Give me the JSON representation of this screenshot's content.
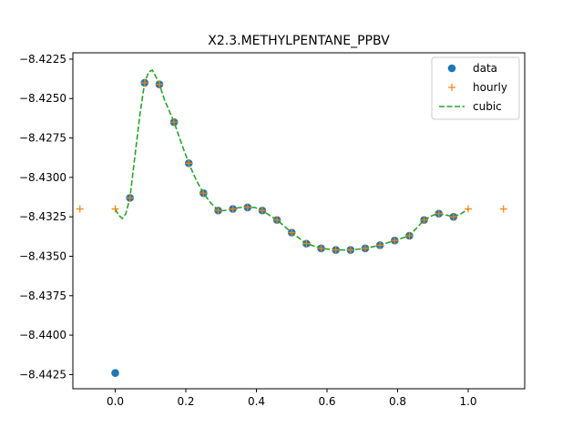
{
  "chart_data": {
    "type": "line",
    "title": "X2.3.METHYLPENTANE_PPBV",
    "xlabel": "",
    "ylabel": "",
    "xlim": [
      -0.12,
      1.16
    ],
    "ylim": [
      -8.4434,
      -8.4221
    ],
    "x_ticks": [
      0.0,
      0.2,
      0.4,
      0.6,
      0.8,
      1.0
    ],
    "x_tick_labels": [
      "0.0",
      "0.2",
      "0.4",
      "0.6",
      "0.8",
      "1.0"
    ],
    "y_ticks": [
      -8.4225,
      -8.425,
      -8.4275,
      -8.43,
      -8.4325,
      -8.435,
      -8.4375,
      -8.44,
      -8.4425
    ],
    "y_tick_labels": [
      "−8.4225",
      "−8.4250",
      "−8.4275",
      "−8.4300",
      "−8.4325",
      "−8.4350",
      "−8.4375",
      "−8.4400",
      "−8.4425"
    ],
    "legend": {
      "placement": "top-right",
      "entries": [
        "data",
        "hourly",
        "cubic"
      ]
    },
    "series": [
      {
        "name": "data",
        "style": "marker-circle",
        "color": "#1f77b4",
        "x": [
          0.0,
          0.0417,
          0.0833,
          0.125,
          0.1667,
          0.2083,
          0.25,
          0.2917,
          0.3333,
          0.375,
          0.4167,
          0.4583,
          0.5,
          0.5417,
          0.5833,
          0.625,
          0.6667,
          0.7083,
          0.75,
          0.7917,
          0.8333,
          0.875,
          0.9167,
          0.9583
        ],
        "y": [
          -8.4424,
          -8.4313,
          -8.424,
          -8.4241,
          -8.4265,
          -8.4291,
          -8.431,
          -8.4321,
          -8.432,
          -8.4319,
          -8.4321,
          -8.4327,
          -8.4335,
          -8.4342,
          -8.4345,
          -8.4346,
          -8.4346,
          -8.4345,
          -8.4343,
          -8.434,
          -8.4337,
          -8.4327,
          -8.4323,
          -8.4325
        ]
      },
      {
        "name": "hourly",
        "style": "marker-plus",
        "color": "#ff7f0e",
        "x": [
          -0.1,
          0.0,
          0.0417,
          0.0833,
          0.125,
          0.1667,
          0.2083,
          0.25,
          0.2917,
          0.3333,
          0.375,
          0.4167,
          0.4583,
          0.5,
          0.5417,
          0.5833,
          0.625,
          0.6667,
          0.7083,
          0.75,
          0.7917,
          0.8333,
          0.875,
          0.9167,
          0.9583,
          1.0,
          1.1
        ],
        "y": [
          -8.432,
          -8.432,
          -8.4313,
          -8.424,
          -8.4241,
          -8.4265,
          -8.4291,
          -8.431,
          -8.4321,
          -8.432,
          -8.4319,
          -8.4321,
          -8.4327,
          -8.4335,
          -8.4342,
          -8.4345,
          -8.4346,
          -8.4346,
          -8.4345,
          -8.4343,
          -8.434,
          -8.4337,
          -8.4327,
          -8.4323,
          -8.4325,
          -8.432,
          -8.432
        ]
      },
      {
        "name": "cubic",
        "style": "dashed-line",
        "color": "#2ca02c",
        "x": [
          0.0,
          0.01,
          0.02,
          0.03,
          0.0417,
          0.055,
          0.07,
          0.0833,
          0.095,
          0.105,
          0.115,
          0.125,
          0.14,
          0.1667,
          0.19,
          0.2083,
          0.23,
          0.25,
          0.27,
          0.2917,
          0.31,
          0.3333,
          0.355,
          0.375,
          0.395,
          0.4167,
          0.4583,
          0.5,
          0.5417,
          0.5833,
          0.625,
          0.6667,
          0.7083,
          0.75,
          0.7917,
          0.8333,
          0.875,
          0.9,
          0.9167,
          0.94,
          0.9583,
          0.98,
          1.0
        ],
        "y": [
          -8.432,
          -8.4324,
          -8.4326,
          -8.4323,
          -8.4313,
          -8.4288,
          -8.426,
          -8.424,
          -8.4233,
          -8.4232,
          -8.4236,
          -8.4241,
          -8.4251,
          -8.4265,
          -8.428,
          -8.4291,
          -8.4302,
          -8.431,
          -8.4316,
          -8.4321,
          -8.4321,
          -8.432,
          -8.4319,
          -8.4319,
          -8.4319,
          -8.4321,
          -8.4327,
          -8.4335,
          -8.4342,
          -8.4345,
          -8.4346,
          -8.4346,
          -8.4345,
          -8.4343,
          -8.434,
          -8.4337,
          -8.4327,
          -8.4324,
          -8.4323,
          -8.4324,
          -8.4325,
          -8.4323,
          -8.432
        ]
      }
    ],
    "grid": false
  }
}
